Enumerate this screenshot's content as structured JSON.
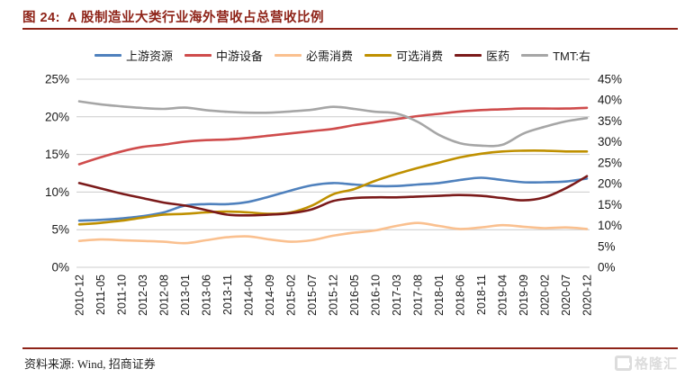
{
  "header": {
    "figure_label": "图 24:",
    "title": "A 股制造业大类行业海外营收占总营收比例"
  },
  "footer": {
    "source": "资料来源: Wind, 招商证券",
    "logo_text": "格隆汇"
  },
  "colors": {
    "accent_red": "#8e2318",
    "grid": "#cccccc",
    "axis_text": "#1a1a1a"
  },
  "chart_data": {
    "type": "line",
    "title": "A 股制造业大类行业海外营收占总营收比例",
    "grid": true,
    "legend_position": "top",
    "categories": [
      "2010-12",
      "2011-05",
      "2011-10",
      "2012-03",
      "2012-08",
      "2013-01",
      "2013-06",
      "2013-11",
      "2014-04",
      "2014-09",
      "2015-02",
      "2015-07",
      "2015-12",
      "2016-05",
      "2016-10",
      "2017-03",
      "2017-08",
      "2018-01",
      "2018-06",
      "2018-11",
      "2019-04",
      "2019-09",
      "2020-02",
      "2020-07",
      "2020-12"
    ],
    "left_axis": {
      "min": 0,
      "max": 25,
      "ticks": [
        "0%",
        "5%",
        "10%",
        "15%",
        "20%",
        "25%"
      ]
    },
    "right_axis": {
      "min": 0,
      "max": 45,
      "ticks": [
        "0%",
        "5%",
        "10%",
        "15%",
        "20%",
        "25%",
        "30%",
        "35%",
        "40%",
        "45%"
      ]
    },
    "series": [
      {
        "name": "上游资源",
        "axis": "left",
        "color": "#4f81bd",
        "values": [
          6.2,
          6.3,
          6.5,
          6.8,
          7.3,
          8.2,
          8.4,
          8.4,
          8.7,
          9.4,
          10.2,
          10.9,
          11.2,
          11.0,
          10.8,
          10.8,
          11.0,
          11.2,
          11.6,
          11.9,
          11.6,
          11.3,
          11.3,
          11.4,
          11.8
        ]
      },
      {
        "name": "中游设备",
        "axis": "left",
        "color": "#cf4c4c",
        "values": [
          13.7,
          14.6,
          15.4,
          16.0,
          16.3,
          16.7,
          16.9,
          17.0,
          17.2,
          17.5,
          17.8,
          18.1,
          18.4,
          18.9,
          19.3,
          19.7,
          20.1,
          20.4,
          20.7,
          20.9,
          21.0,
          21.1,
          21.1,
          21.1,
          21.2
        ]
      },
      {
        "name": "必需消费",
        "axis": "left",
        "color": "#fac08f",
        "values": [
          3.5,
          3.7,
          3.6,
          3.5,
          3.4,
          3.2,
          3.6,
          4.0,
          4.1,
          3.7,
          3.4,
          3.6,
          4.2,
          4.6,
          4.9,
          5.5,
          5.9,
          5.5,
          5.1,
          5.3,
          5.6,
          5.4,
          5.2,
          5.3,
          5.1
        ]
      },
      {
        "name": "可选消费",
        "axis": "left",
        "color": "#bf9000",
        "values": [
          5.7,
          5.9,
          6.2,
          6.6,
          7.0,
          7.1,
          7.3,
          7.4,
          7.3,
          7.1,
          7.3,
          8.2,
          9.7,
          10.4,
          11.5,
          12.4,
          13.2,
          13.9,
          14.6,
          15.1,
          15.4,
          15.5,
          15.5,
          15.4,
          15.4
        ]
      },
      {
        "name": "医药",
        "axis": "left",
        "color": "#7b1a1a",
        "values": [
          11.2,
          10.5,
          9.8,
          9.2,
          8.6,
          8.2,
          7.6,
          7.0,
          6.9,
          7.0,
          7.2,
          7.7,
          8.8,
          9.2,
          9.3,
          9.3,
          9.4,
          9.5,
          9.6,
          9.5,
          9.2,
          8.9,
          9.3,
          10.5,
          12.1
        ]
      },
      {
        "name": "TMT:右",
        "axis": "right",
        "color": "#a6a6a6",
        "values": [
          39.7,
          39.0,
          38.5,
          38.1,
          37.9,
          38.2,
          37.6,
          37.2,
          37.0,
          37.0,
          37.3,
          37.7,
          38.4,
          37.9,
          37.2,
          36.8,
          34.8,
          31.7,
          29.7,
          29.1,
          29.3,
          32.0,
          33.6,
          34.9,
          35.7
        ]
      }
    ]
  }
}
